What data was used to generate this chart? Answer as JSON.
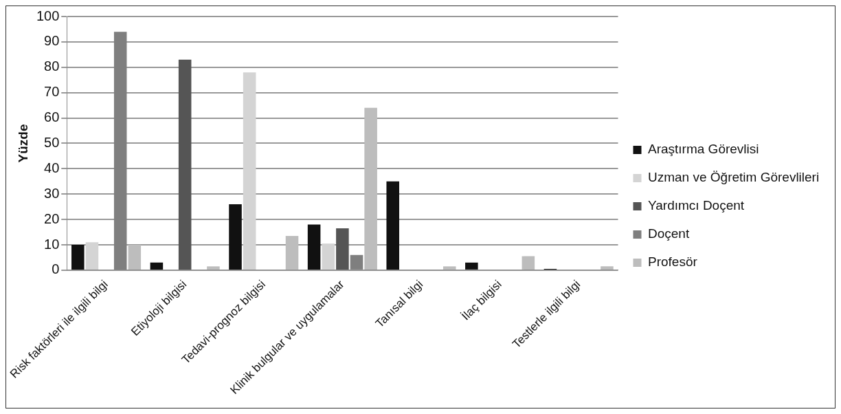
{
  "chart_data": {
    "type": "bar",
    "ylabel": "Yüzde",
    "categories": [
      "Risk faktörleri ile ilgili bilgi",
      "Etiyoloji bilgisi",
      "Tedavi-prognoz bilgisi",
      "Klinik bulgular ve uygulamalar",
      "Tanısal bilgi",
      "İlaç bilgisi",
      "Testlerle ilgili bilgi"
    ],
    "series": [
      {
        "name": "Araştırma Görevlisi",
        "color": "#111111",
        "values": [
          10,
          3,
          26,
          18,
          35,
          3,
          0.5
        ]
      },
      {
        "name": "Uzman ve Öğretim Görevlileri",
        "color": "#d4d4d4",
        "values": [
          11,
          0,
          78,
          10.5,
          0,
          0,
          0
        ]
      },
      {
        "name": "Yardımcı Doçent",
        "color": "#555555",
        "values": [
          0,
          83,
          0,
          16.5,
          0,
          0,
          0
        ]
      },
      {
        "name": "Doçent",
        "color": "#7f7f7f",
        "values": [
          94,
          0,
          0,
          6,
          0,
          0,
          0
        ]
      },
      {
        "name": "Profesör",
        "color": "#bdbdbd",
        "values": [
          10,
          1.5,
          13.5,
          64,
          1.5,
          5.5,
          1.5
        ]
      }
    ],
    "ylim": [
      0,
      100
    ],
    "yticks": [
      0,
      10,
      20,
      30,
      40,
      50,
      60,
      70,
      80,
      90,
      100
    ],
    "grid": "y",
    "legend": "right"
  }
}
